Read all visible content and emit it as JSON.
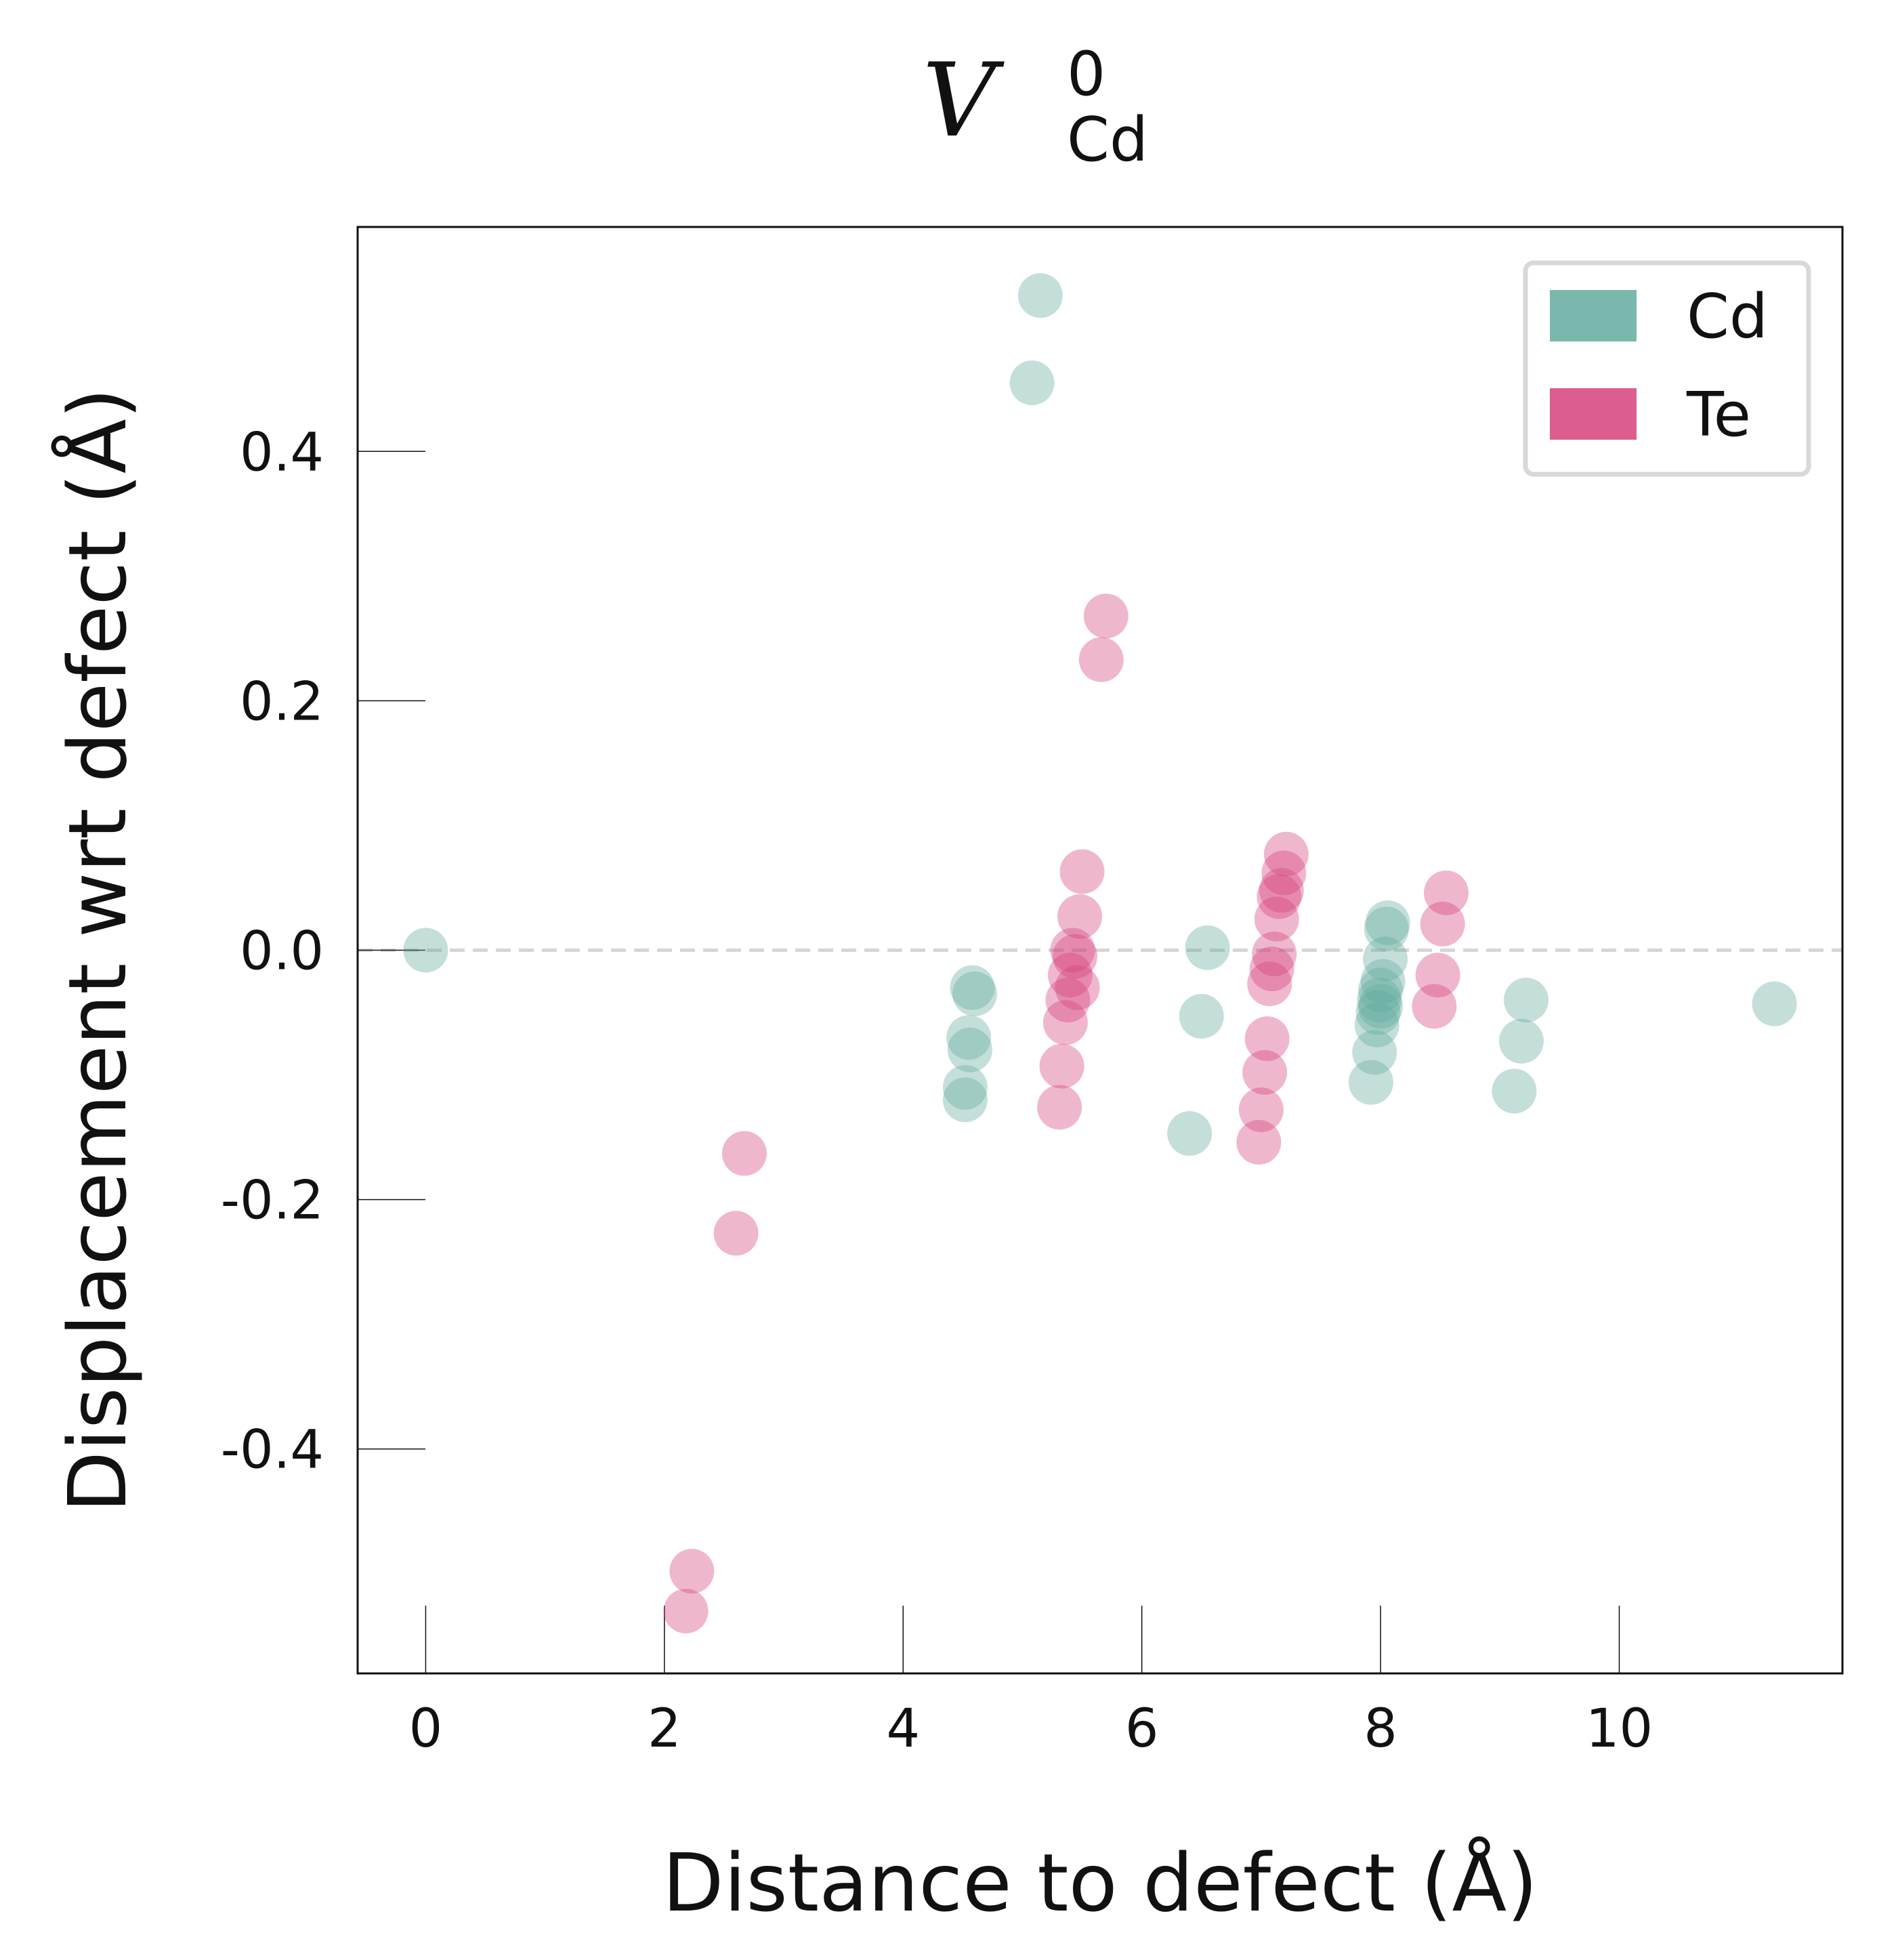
{
  "chart_data": {
    "type": "scatter",
    "title": {
      "main": "V",
      "superscript": "0",
      "subscript": "Cd"
    },
    "xlabel": "Distance to defect (Å)",
    "ylabel": "Displacement wrt defect (Å)",
    "xlim": [
      -0.57,
      11.87
    ],
    "ylim": [
      -0.58,
      0.58
    ],
    "x_ticks": [
      0,
      2,
      4,
      6,
      8,
      10
    ],
    "x_tick_labels": [
      "0",
      "2",
      "4",
      "6",
      "8",
      "10"
    ],
    "y_ticks": [
      -0.4,
      -0.2,
      0.0,
      0.2,
      0.4
    ],
    "y_tick_labels": [
      "-0.4",
      "-0.2",
      "0.0",
      "0.2",
      "0.4"
    ],
    "reference_line": {
      "y": 0.0,
      "style": "dashed",
      "color": "#d6d6d6"
    },
    "legend": {
      "placement": "top-right"
    },
    "series": [
      {
        "name": "Cd",
        "color": "#63ac9f",
        "points": [
          [
            0.0,
            0.0
          ],
          [
            4.52,
            -0.11
          ],
          [
            4.52,
            -0.12
          ],
          [
            4.55,
            -0.07
          ],
          [
            4.56,
            -0.08
          ],
          [
            4.58,
            -0.03
          ],
          [
            4.6,
            -0.035
          ],
          [
            5.08,
            0.455
          ],
          [
            5.15,
            0.525
          ],
          [
            6.4,
            -0.147
          ],
          [
            6.5,
            -0.053
          ],
          [
            6.55,
            0.002
          ],
          [
            7.92,
            -0.106
          ],
          [
            7.95,
            -0.082
          ],
          [
            7.97,
            -0.06
          ],
          [
            7.98,
            -0.05
          ],
          [
            7.99,
            -0.04
          ],
          [
            8.0,
            -0.032
          ],
          [
            8.0,
            -0.045
          ],
          [
            8.02,
            -0.025
          ],
          [
            8.04,
            -0.007
          ],
          [
            8.05,
            0.017
          ],
          [
            8.06,
            0.022
          ],
          [
            9.12,
            -0.113
          ],
          [
            9.18,
            -0.073
          ],
          [
            9.22,
            -0.04
          ],
          [
            11.3,
            -0.043
          ]
        ]
      },
      {
        "name": "Te",
        "color": "#d6417c",
        "points": [
          [
            2.18,
            -0.53
          ],
          [
            2.23,
            -0.498
          ],
          [
            2.6,
            -0.227
          ],
          [
            2.67,
            -0.163
          ],
          [
            5.31,
            -0.126
          ],
          [
            5.33,
            -0.093
          ],
          [
            5.36,
            -0.058
          ],
          [
            5.38,
            -0.04
          ],
          [
            5.4,
            -0.02
          ],
          [
            5.42,
            0.0
          ],
          [
            5.44,
            -0.005
          ],
          [
            5.46,
            -0.03
          ],
          [
            5.48,
            0.027
          ],
          [
            5.5,
            0.063
          ],
          [
            5.66,
            0.233
          ],
          [
            5.7,
            0.268
          ],
          [
            6.98,
            -0.154
          ],
          [
            7.0,
            -0.128
          ],
          [
            7.03,
            -0.098
          ],
          [
            7.05,
            -0.071
          ],
          [
            7.07,
            -0.027
          ],
          [
            7.09,
            -0.015
          ],
          [
            7.11,
            -0.003
          ],
          [
            7.13,
            0.025
          ],
          [
            7.15,
            0.043
          ],
          [
            7.17,
            0.048
          ],
          [
            7.19,
            0.062
          ],
          [
            7.21,
            0.077
          ],
          [
            8.45,
            -0.045
          ],
          [
            8.48,
            -0.02
          ],
          [
            8.52,
            0.021
          ],
          [
            8.55,
            0.046
          ]
        ]
      }
    ]
  }
}
